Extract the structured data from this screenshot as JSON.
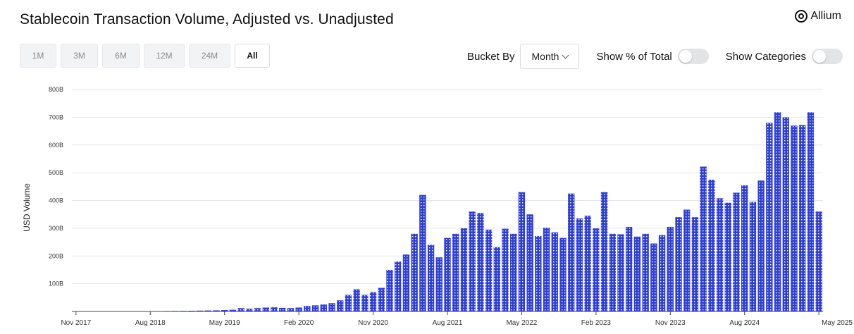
{
  "title": "Stablecoin Transaction Volume, Adjusted vs. Unadjusted",
  "brand": {
    "name": "Allium",
    "icon": "allium-logo-icon"
  },
  "ranges": {
    "items": [
      {
        "label": "1M"
      },
      {
        "label": "3M"
      },
      {
        "label": "6M"
      },
      {
        "label": "12M"
      },
      {
        "label": "24M"
      },
      {
        "label": "All"
      }
    ],
    "active": "All"
  },
  "controls": {
    "bucket_label": "Bucket By",
    "bucket_value": "Month",
    "pct_label": "Show % of Total",
    "pct_enabled": false,
    "categories_label": "Show Categories",
    "categories_enabled": false
  },
  "colors": {
    "bar": "#2f3fd6",
    "pattern": "#ffffff",
    "grid": "#e6e6e6"
  },
  "chart_data": {
    "type": "bar",
    "title": "Stablecoin Transaction Volume, Adjusted vs. Unadjusted",
    "xlabel": "",
    "ylabel": "USD Volume",
    "ylim": [
      0,
      800
    ],
    "y_unit": "B",
    "y_ticks": [
      "100B",
      "200B",
      "300B",
      "400B",
      "500B",
      "600B",
      "700B",
      "800B"
    ],
    "x_tick_labels": [
      "Nov 2017",
      "Aug 2018",
      "May 2019",
      "Feb 2020",
      "Nov 2020",
      "Aug 2021",
      "May 2022",
      "Feb 2023",
      "Nov 2023",
      "Aug 2024",
      "May 2025"
    ],
    "x_tick_index": [
      0,
      9,
      18,
      27,
      36,
      45,
      54,
      63,
      72,
      81,
      90
    ],
    "grid": true,
    "start_month": "Nov 2017",
    "series": [
      {
        "values": [
          0.3,
          0.3,
          0.4,
          0.4,
          0.5,
          0.6,
          0.7,
          0.8,
          0.9,
          1,
          1.2,
          1.5,
          1.8,
          2,
          2.5,
          3,
          3.5,
          4,
          5,
          6,
          12,
          10,
          12,
          14,
          15,
          13,
          12,
          14,
          20,
          22,
          25,
          30,
          40,
          60,
          80,
          60,
          70,
          85,
          150,
          180,
          205,
          280,
          420,
          240,
          195,
          265,
          280,
          300,
          360,
          355,
          295,
          232,
          298,
          280,
          430,
          350,
          272,
          302,
          285,
          265,
          425,
          335,
          345,
          300,
          430,
          280,
          278,
          305,
          270,
          280,
          245,
          275,
          305,
          340,
          367,
          340,
          522,
          475,
          408,
          392,
          428,
          455,
          395,
          472,
          680,
          718,
          700,
          670,
          672,
          718,
          360
        ]
      }
    ]
  }
}
